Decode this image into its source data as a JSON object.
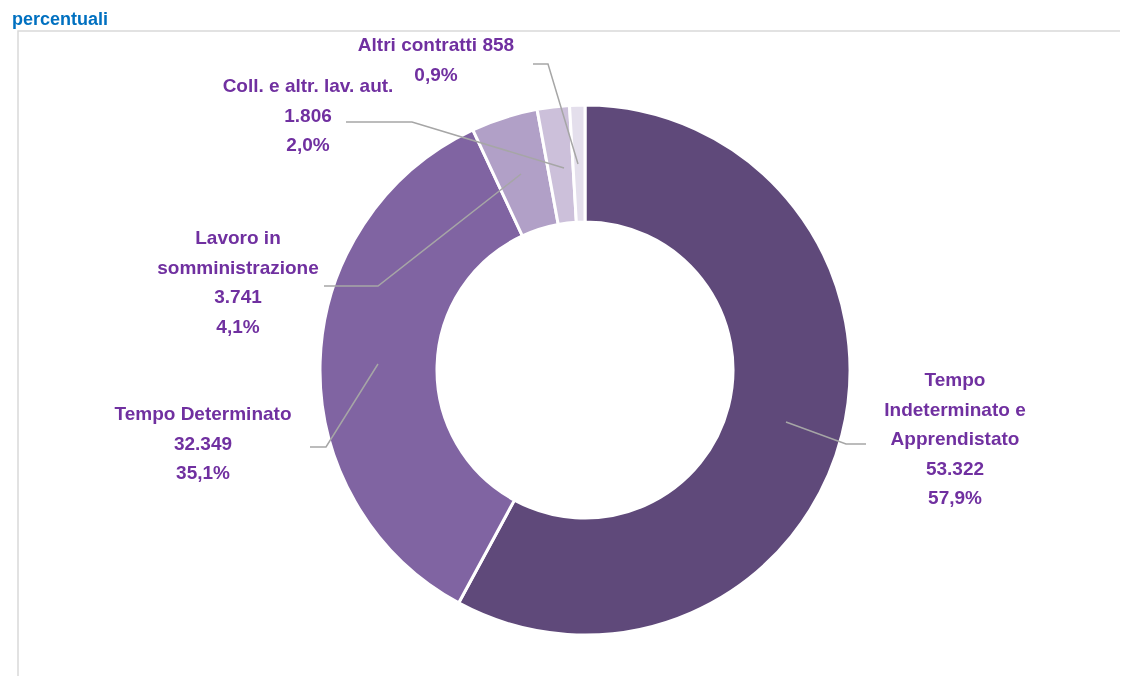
{
  "chart_data": {
    "type": "donut",
    "title": "percentuali",
    "categories": [
      "Tempo\nIndeterminato e\nApprendistato",
      "Tempo Determinato",
      "Lavoro in\nsomministrazione",
      "Coll. e altr. lav. aut.",
      "Altri contratti"
    ],
    "values": [
      53322,
      32349,
      3741,
      1806,
      858
    ],
    "value_labels": [
      "53.322\n57,9%",
      "32.349\n35,1%",
      "3.741\n4,1%",
      "1.806\n2,0%",
      "858\n0,9%"
    ],
    "colors": [
      "#5f497a",
      "#8064a2",
      "#b1a0c7",
      "#ccc0da",
      "#e4dfec"
    ],
    "legend": false
  }
}
